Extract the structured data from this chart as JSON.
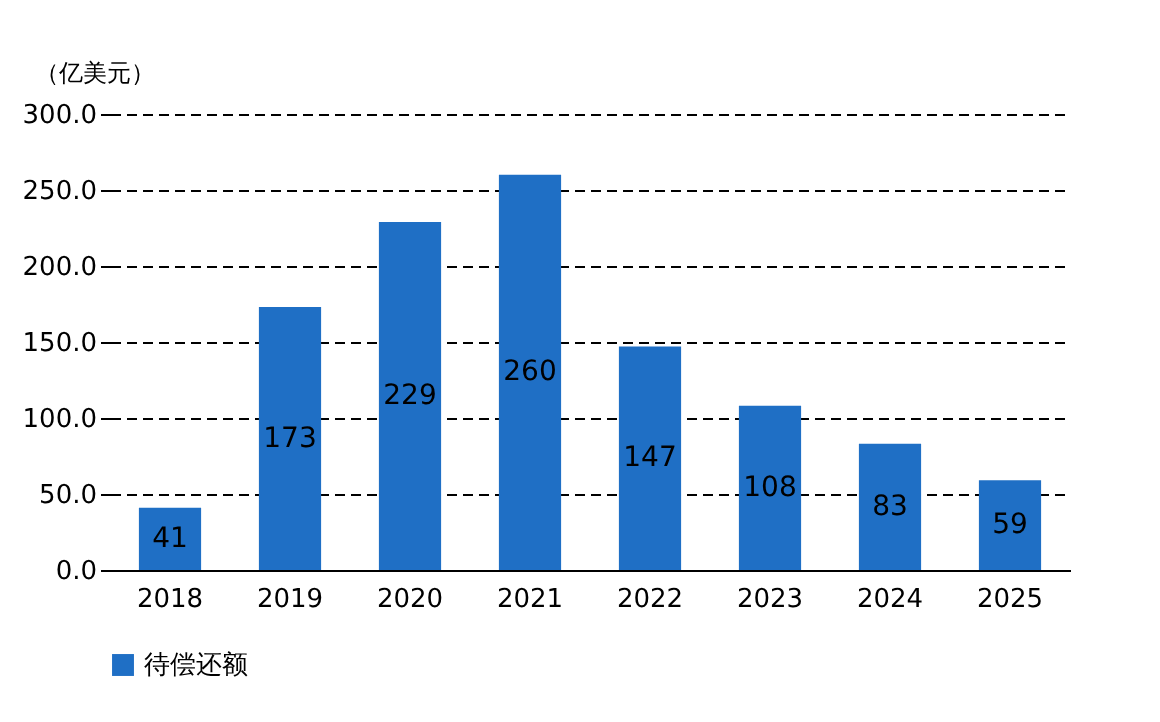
{
  "chart_data": {
    "type": "bar",
    "ylabel": "（亿美元）",
    "categories": [
      "2018",
      "2019",
      "2020",
      "2021",
      "2022",
      "2023",
      "2024",
      "2025"
    ],
    "series": [
      {
        "name": "待偿还额",
        "color": "#1f6fc5",
        "values": [
          41,
          173,
          229,
          260,
          147,
          108,
          83,
          59
        ]
      }
    ],
    "ylim": [
      0,
      300
    ],
    "yticks": [
      {
        "value": 0,
        "label": "0.0"
      },
      {
        "value": 50,
        "label": "50.0"
      },
      {
        "value": 100,
        "label": "100.0"
      },
      {
        "value": 150,
        "label": "150.0"
      },
      {
        "value": 200,
        "label": "200.0"
      },
      {
        "value": 250,
        "label": "250.0"
      },
      {
        "value": 300,
        "label": "300.0"
      }
    ],
    "grid": "y",
    "legend": "bottom",
    "data_labels": true
  }
}
